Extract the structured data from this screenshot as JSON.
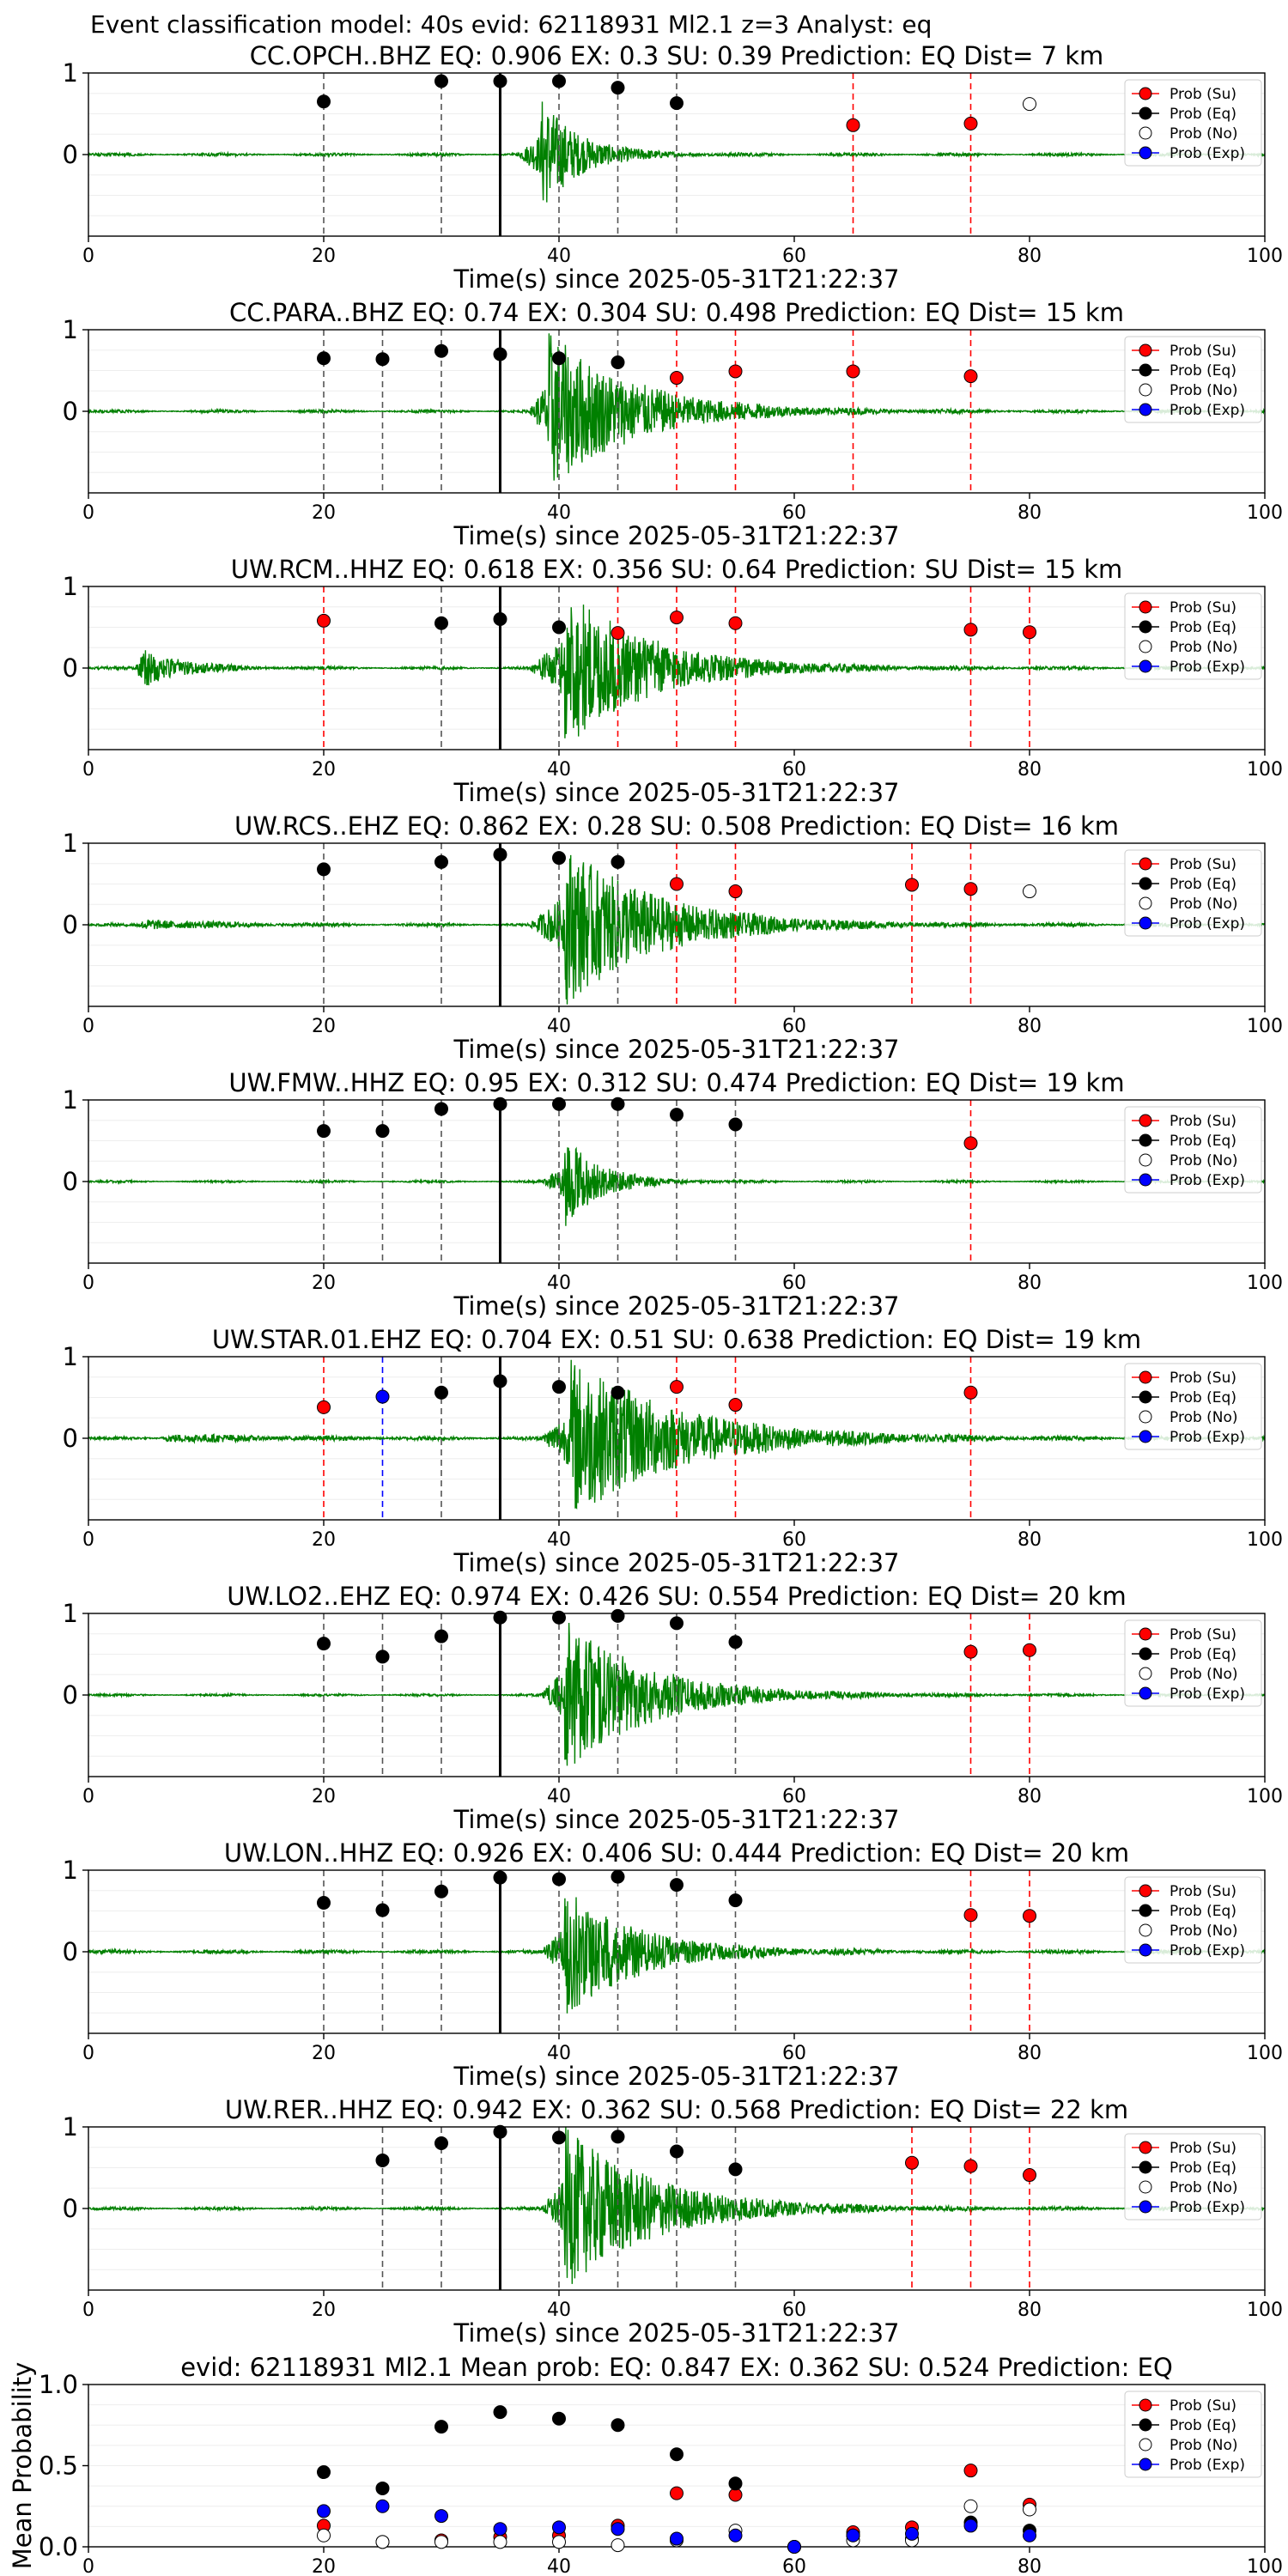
{
  "figure_title": "Event classification model: 40s evid: 62118931 Ml2.1 z=3 Analyst: eq",
  "colors": {
    "waveform": "#008000",
    "su": "#ff0000",
    "eq": "#000000",
    "exp": "#0000ff",
    "no": "#ffffff",
    "su_line": "#ff0000",
    "eq_line": "#555555",
    "exp_line": "#0000ff",
    "origin_line": "#000000"
  },
  "legend": [
    "Prob (Su)",
    "Prob (Eq)",
    "Prob (No)",
    "Prob (Exp)"
  ],
  "chart_data": [
    {
      "type": "scatter",
      "title": "CC.OPCH..BHZ   EQ: 0.906  EX: 0.3  SU: 0.39   Prediction: EQ    Dist= 7 km",
      "xlabel": "Time(s) since 2025-05-31T21:22:37",
      "xlim": [
        0,
        100
      ],
      "ylim": [
        -1,
        1
      ],
      "xticks": [
        "0",
        "20",
        "40",
        "60",
        "80",
        "100"
      ],
      "yticks": [
        "0",
        "1"
      ],
      "origin_time": 35,
      "signal": {
        "onset": 36.5,
        "peak": 0.7,
        "peak_time": 38.5,
        "decay": 3.2,
        "pre_noise": 0.02,
        "seed": 1
      },
      "points": [
        {
          "x": 20,
          "y": 0.65,
          "class": "eq"
        },
        {
          "x": 30,
          "y": 0.9,
          "class": "eq"
        },
        {
          "x": 35,
          "y": 0.9,
          "class": "eq"
        },
        {
          "x": 40,
          "y": 0.9,
          "class": "eq"
        },
        {
          "x": 45,
          "y": 0.82,
          "class": "eq"
        },
        {
          "x": 50,
          "y": 0.63,
          "class": "eq"
        },
        {
          "x": 65,
          "y": 0.36,
          "class": "su"
        },
        {
          "x": 75,
          "y": 0.38,
          "class": "su"
        },
        {
          "x": 80,
          "y": 0.62,
          "class": "no"
        }
      ]
    },
    {
      "type": "scatter",
      "title": "CC.PARA..BHZ   EQ: 0.74  EX: 0.304  SU: 0.498   Prediction: EQ    Dist= 15 km",
      "xlabel": "Time(s) since 2025-05-31T21:22:37",
      "xlim": [
        0,
        100
      ],
      "ylim": [
        -1,
        1
      ],
      "xticks": [
        "0",
        "20",
        "40",
        "60",
        "80",
        "100"
      ],
      "yticks": [
        "0",
        "1"
      ],
      "origin_time": 35,
      "signal": {
        "onset": 37.5,
        "peak": 1.0,
        "peak_time": 39.0,
        "decay": 7.0,
        "pre_noise": 0.02,
        "seed": 2
      },
      "points": [
        {
          "x": 20,
          "y": 0.65,
          "class": "eq"
        },
        {
          "x": 25,
          "y": 0.64,
          "class": "eq"
        },
        {
          "x": 30,
          "y": 0.74,
          "class": "eq"
        },
        {
          "x": 35,
          "y": 0.7,
          "class": "eq"
        },
        {
          "x": 40,
          "y": 0.65,
          "class": "eq"
        },
        {
          "x": 45,
          "y": 0.6,
          "class": "eq"
        },
        {
          "x": 50,
          "y": 0.41,
          "class": "su"
        },
        {
          "x": 55,
          "y": 0.49,
          "class": "su"
        },
        {
          "x": 65,
          "y": 0.49,
          "class": "su"
        },
        {
          "x": 75,
          "y": 0.43,
          "class": "su"
        }
      ]
    },
    {
      "type": "scatter",
      "title": "UW.RCM..HHZ   EQ: 0.618  EX: 0.356  SU: 0.64   Prediction: SU    Dist= 15 km",
      "xlabel": "Time(s) since 2025-05-31T21:22:37",
      "xlim": [
        0,
        100
      ],
      "ylim": [
        -1,
        1
      ],
      "xticks": [
        "0",
        "20",
        "40",
        "60",
        "80",
        "100"
      ],
      "yticks": [
        "0",
        "1"
      ],
      "origin_time": 35,
      "signal": {
        "onset": 37.5,
        "peak": 1.0,
        "peak_time": 40.5,
        "decay": 7.0,
        "pre_noise": 0.02,
        "seed": 3,
        "pre_event": {
          "onset": 4.0,
          "peak": 0.35,
          "decay": 3.0
        }
      },
      "points": [
        {
          "x": 20,
          "y": 0.58,
          "class": "su"
        },
        {
          "x": 30,
          "y": 0.55,
          "class": "eq"
        },
        {
          "x": 35,
          "y": 0.6,
          "class": "eq"
        },
        {
          "x": 40,
          "y": 0.5,
          "class": "eq"
        },
        {
          "x": 45,
          "y": 0.43,
          "class": "su"
        },
        {
          "x": 50,
          "y": 0.62,
          "class": "su"
        },
        {
          "x": 55,
          "y": 0.55,
          "class": "su"
        },
        {
          "x": 75,
          "y": 0.47,
          "class": "su"
        },
        {
          "x": 80,
          "y": 0.44,
          "class": "su"
        }
      ]
    },
    {
      "type": "scatter",
      "title": "UW.RCS..EHZ   EQ: 0.862  EX: 0.28  SU: 0.508   Prediction: EQ    Dist= 16 km",
      "xlabel": "Time(s) since 2025-05-31T21:22:37",
      "xlim": [
        0,
        100
      ],
      "ylim": [
        -1,
        1
      ],
      "xticks": [
        "0",
        "20",
        "40",
        "60",
        "80",
        "100"
      ],
      "yticks": [
        "0",
        "1"
      ],
      "origin_time": 35,
      "signal": {
        "onset": 37.5,
        "peak": 1.0,
        "peak_time": 40.5,
        "decay": 7.5,
        "pre_noise": 0.02,
        "seed": 4,
        "pre_event": {
          "onset": 4.0,
          "peak": 0.07,
          "decay": 6.0
        }
      },
      "points": [
        {
          "x": 20,
          "y": 0.68,
          "class": "eq"
        },
        {
          "x": 30,
          "y": 0.77,
          "class": "eq"
        },
        {
          "x": 35,
          "y": 0.86,
          "class": "eq"
        },
        {
          "x": 40,
          "y": 0.82,
          "class": "eq"
        },
        {
          "x": 45,
          "y": 0.77,
          "class": "eq"
        },
        {
          "x": 50,
          "y": 0.5,
          "class": "su"
        },
        {
          "x": 55,
          "y": 0.41,
          "class": "su"
        },
        {
          "x": 70,
          "y": 0.49,
          "class": "su"
        },
        {
          "x": 75,
          "y": 0.44,
          "class": "su"
        },
        {
          "x": 80,
          "y": 0.41,
          "class": "no"
        }
      ]
    },
    {
      "type": "scatter",
      "title": "UW.FMW..HHZ   EQ: 0.95  EX: 0.312  SU: 0.474   Prediction: EQ    Dist= 19 km",
      "xlabel": "Time(s) since 2025-05-31T21:22:37",
      "xlim": [
        0,
        100
      ],
      "ylim": [
        -1,
        1
      ],
      "xticks": [
        "0",
        "20",
        "40",
        "60",
        "80",
        "100"
      ],
      "yticks": [
        "0",
        "1"
      ],
      "origin_time": 35,
      "signal": {
        "onset": 38.5,
        "peak": 0.55,
        "peak_time": 40.5,
        "decay": 3.0,
        "pre_noise": 0.015,
        "seed": 5
      },
      "points": [
        {
          "x": 20,
          "y": 0.62,
          "class": "eq"
        },
        {
          "x": 25,
          "y": 0.62,
          "class": "eq"
        },
        {
          "x": 30,
          "y": 0.89,
          "class": "eq"
        },
        {
          "x": 35,
          "y": 0.95,
          "class": "eq"
        },
        {
          "x": 40,
          "y": 0.95,
          "class": "eq"
        },
        {
          "x": 45,
          "y": 0.95,
          "class": "eq"
        },
        {
          "x": 50,
          "y": 0.82,
          "class": "eq"
        },
        {
          "x": 55,
          "y": 0.7,
          "class": "eq"
        },
        {
          "x": 75,
          "y": 0.47,
          "class": "su"
        }
      ]
    },
    {
      "type": "scatter",
      "title": "UW.STAR.01.EHZ   EQ: 0.704  EX: 0.51  SU: 0.638   Prediction: EQ    Dist= 19 km",
      "xlabel": "Time(s) since 2025-05-31T21:22:37",
      "xlim": [
        0,
        100
      ],
      "ylim": [
        -1,
        1
      ],
      "xticks": [
        "0",
        "20",
        "40",
        "60",
        "80",
        "100"
      ],
      "yticks": [
        "0",
        "1"
      ],
      "origin_time": 35,
      "signal": {
        "onset": 38.5,
        "peak": 1.0,
        "peak_time": 41.0,
        "decay": 9.0,
        "pre_noise": 0.02,
        "seed": 6,
        "pre_event": {
          "onset": 6.0,
          "peak": 0.05,
          "decay": 10.0
        }
      },
      "points": [
        {
          "x": 20,
          "y": 0.38,
          "class": "su"
        },
        {
          "x": 25,
          "y": 0.51,
          "class": "exp"
        },
        {
          "x": 30,
          "y": 0.56,
          "class": "eq"
        },
        {
          "x": 35,
          "y": 0.7,
          "class": "eq"
        },
        {
          "x": 40,
          "y": 0.63,
          "class": "eq"
        },
        {
          "x": 45,
          "y": 0.56,
          "class": "eq"
        },
        {
          "x": 50,
          "y": 0.63,
          "class": "su"
        },
        {
          "x": 55,
          "y": 0.41,
          "class": "su"
        },
        {
          "x": 75,
          "y": 0.56,
          "class": "su"
        }
      ]
    },
    {
      "type": "scatter",
      "title": "UW.LO2..EHZ   EQ: 0.974  EX: 0.426  SU: 0.554   Prediction: EQ    Dist= 20 km",
      "xlabel": "Time(s) since 2025-05-31T21:22:37",
      "xlim": [
        0,
        100
      ],
      "ylim": [
        -1,
        1
      ],
      "xticks": [
        "0",
        "20",
        "40",
        "60",
        "80",
        "100"
      ],
      "yticks": [
        "0",
        "1"
      ],
      "origin_time": 35,
      "signal": {
        "onset": 38.5,
        "peak": 0.95,
        "peak_time": 40.5,
        "decay": 7.0,
        "pre_noise": 0.015,
        "seed": 7
      },
      "points": [
        {
          "x": 20,
          "y": 0.63,
          "class": "eq"
        },
        {
          "x": 25,
          "y": 0.47,
          "class": "eq"
        },
        {
          "x": 30,
          "y": 0.72,
          "class": "eq"
        },
        {
          "x": 35,
          "y": 0.95,
          "class": "eq"
        },
        {
          "x": 40,
          "y": 0.95,
          "class": "eq"
        },
        {
          "x": 45,
          "y": 0.97,
          "class": "eq"
        },
        {
          "x": 50,
          "y": 0.88,
          "class": "eq"
        },
        {
          "x": 55,
          "y": 0.65,
          "class": "eq"
        },
        {
          "x": 75,
          "y": 0.53,
          "class": "su"
        },
        {
          "x": 80,
          "y": 0.55,
          "class": "su"
        }
      ]
    },
    {
      "type": "scatter",
      "title": "UW.LON..HHZ   EQ: 0.926  EX: 0.406  SU: 0.444   Prediction: EQ    Dist= 20 km",
      "xlabel": "Time(s) since 2025-05-31T21:22:37",
      "xlim": [
        0,
        100
      ],
      "ylim": [
        -1,
        1
      ],
      "xticks": [
        "0",
        "20",
        "40",
        "60",
        "80",
        "100"
      ],
      "yticks": [
        "0",
        "1"
      ],
      "origin_time": 35,
      "signal": {
        "onset": 38.5,
        "peak": 0.8,
        "peak_time": 40.5,
        "decay": 6.0,
        "pre_noise": 0.025,
        "seed": 8
      },
      "points": [
        {
          "x": 20,
          "y": 0.6,
          "class": "eq"
        },
        {
          "x": 25,
          "y": 0.51,
          "class": "eq"
        },
        {
          "x": 30,
          "y": 0.74,
          "class": "eq"
        },
        {
          "x": 35,
          "y": 0.91,
          "class": "eq"
        },
        {
          "x": 40,
          "y": 0.89,
          "class": "eq"
        },
        {
          "x": 45,
          "y": 0.92,
          "class": "eq"
        },
        {
          "x": 50,
          "y": 0.82,
          "class": "eq"
        },
        {
          "x": 55,
          "y": 0.63,
          "class": "eq"
        },
        {
          "x": 75,
          "y": 0.45,
          "class": "su"
        },
        {
          "x": 80,
          "y": 0.44,
          "class": "su"
        }
      ]
    },
    {
      "type": "scatter",
      "title": "UW.RER..HHZ   EQ: 0.942  EX: 0.362  SU: 0.568   Prediction: EQ    Dist= 22 km",
      "xlabel": "Time(s) since 2025-05-31T21:22:37",
      "xlim": [
        0,
        100
      ],
      "ylim": [
        -1,
        1
      ],
      "xticks": [
        "0",
        "20",
        "40",
        "60",
        "80",
        "100"
      ],
      "yticks": [
        "0",
        "1"
      ],
      "origin_time": 35,
      "signal": {
        "onset": 38.5,
        "peak": 1.0,
        "peak_time": 40.5,
        "decay": 7.5,
        "pre_noise": 0.02,
        "seed": 9
      },
      "points": [
        {
          "x": 25,
          "y": 0.59,
          "class": "eq"
        },
        {
          "x": 30,
          "y": 0.8,
          "class": "eq"
        },
        {
          "x": 35,
          "y": 0.94,
          "class": "eq"
        },
        {
          "x": 40,
          "y": 0.87,
          "class": "eq"
        },
        {
          "x": 45,
          "y": 0.88,
          "class": "eq"
        },
        {
          "x": 50,
          "y": 0.7,
          "class": "eq"
        },
        {
          "x": 55,
          "y": 0.48,
          "class": "eq"
        },
        {
          "x": 70,
          "y": 0.56,
          "class": "su"
        },
        {
          "x": 75,
          "y": 0.52,
          "class": "su"
        },
        {
          "x": 80,
          "y": 0.41,
          "class": "su"
        }
      ]
    },
    {
      "type": "scatter",
      "title": "evid: 62118931  Ml2.1   Mean prob:    EQ: 0.847  EX: 0.362  SU: 0.524   Prediction: EQ",
      "ylabel": "Mean Probability",
      "xlim": [
        0,
        100
      ],
      "ylim": [
        0,
        1
      ],
      "xticks": [
        "0",
        "20",
        "40",
        "60",
        "80",
        "100"
      ],
      "yticks": [
        "0.0",
        "0.5",
        "1.0"
      ],
      "series": [
        {
          "name": "Prob (Su)",
          "class": "su",
          "x": [
            20,
            25,
            30,
            35,
            40,
            45,
            50,
            55,
            60,
            65,
            70,
            75,
            80
          ],
          "y": [
            0.13,
            0.03,
            0.04,
            0.06,
            0.07,
            0.13,
            0.33,
            0.32,
            0.0,
            0.09,
            0.12,
            0.47,
            0.26
          ]
        },
        {
          "name": "Prob (Eq)",
          "class": "eq",
          "x": [
            20,
            25,
            30,
            35,
            40,
            45,
            50,
            55,
            60,
            65,
            70,
            75,
            80
          ],
          "y": [
            0.46,
            0.36,
            0.74,
            0.83,
            0.79,
            0.75,
            0.57,
            0.39,
            0.0,
            0.07,
            0.05,
            0.15,
            0.1
          ]
        },
        {
          "name": "Prob (No)",
          "class": "no",
          "x": [
            20,
            25,
            30,
            35,
            40,
            45,
            50,
            55,
            60,
            65,
            70,
            75,
            80
          ],
          "y": [
            0.07,
            0.03,
            0.03,
            0.03,
            0.03,
            0.01,
            0.04,
            0.1,
            0.0,
            0.04,
            0.04,
            0.25,
            0.23
          ]
        },
        {
          "name": "Prob (Exp)",
          "class": "exp",
          "x": [
            20,
            25,
            30,
            35,
            40,
            45,
            50,
            55,
            60,
            65,
            70,
            75,
            80
          ],
          "y": [
            0.22,
            0.25,
            0.19,
            0.11,
            0.12,
            0.11,
            0.05,
            0.07,
            0.0,
            0.07,
            0.08,
            0.13,
            0.07
          ]
        }
      ]
    }
  ]
}
